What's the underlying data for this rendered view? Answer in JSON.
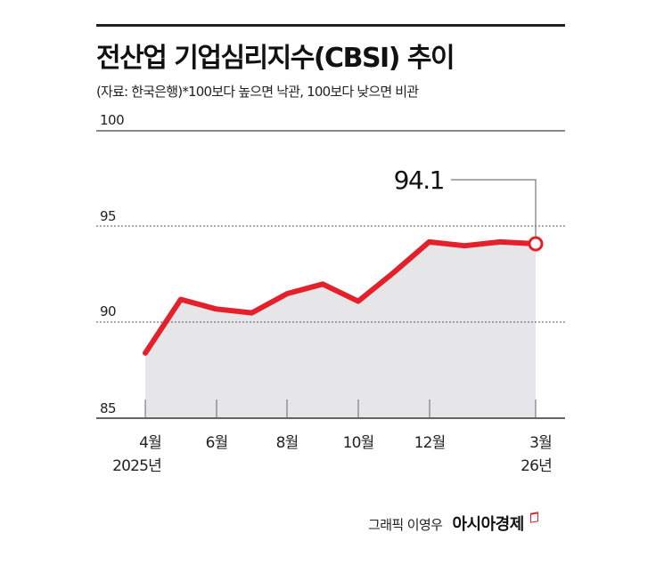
{
  "header": {
    "title": "전산업 기업심리지수(CBSI) 추이",
    "subtitle": "(자료: 한국은행)*100보다 높으면 낙관, 100보다 낮으면 비관"
  },
  "colors": {
    "line": "#e4202a",
    "area": "#e6e6e8",
    "grid": "#555555",
    "text": "#111111"
  },
  "axis": {
    "y_ticks": [
      "100",
      "95",
      "90",
      "85"
    ],
    "x_ticks": [
      "4월",
      "6월",
      "8월",
      "10월",
      "12월",
      "3월"
    ],
    "x_sub": {
      "first": "2025년",
      "last": "26년"
    }
  },
  "annotation": {
    "last_value": "94.1"
  },
  "credit": {
    "graphic": "그래픽 이영우",
    "brand": "아시아경제"
  },
  "chart_data": {
    "type": "area",
    "title": "전산업 기업심리지수(CBSI) 추이",
    "subtitle": "(자료: 한국은행)*100보다 높으면 낙관, 100보다 낮으면 비관",
    "xlabel": "",
    "ylabel": "",
    "categories": [
      "2025-04",
      "2025-05",
      "2025-06",
      "2025-07",
      "2025-08",
      "2025-09",
      "2025-10",
      "2025-11",
      "2025-12",
      "2026-01",
      "2026-02",
      "2026-03"
    ],
    "series": [
      {
        "name": "전산업 CBSI",
        "values": [
          88.4,
          91.2,
          90.7,
          90.5,
          91.5,
          92.0,
          91.1,
          92.6,
          94.2,
          94.0,
          94.2,
          94.1
        ]
      }
    ],
    "x_tick_labels": [
      "4월 2025년",
      "6월",
      "8월",
      "10월",
      "12월",
      "3월 26년"
    ],
    "ylim": [
      85,
      100
    ],
    "y_ticks": [
      85,
      90,
      95,
      100
    ],
    "grid": true,
    "annotations": [
      {
        "x": "2026-03",
        "y": 94.1,
        "text": "94.1"
      }
    ],
    "legend": null
  }
}
